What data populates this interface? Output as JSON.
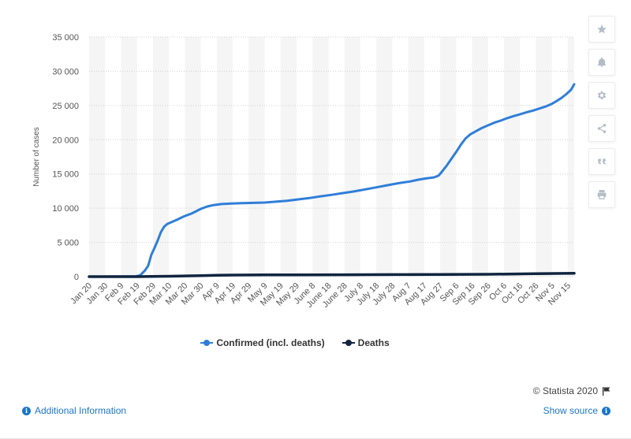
{
  "chart_data": {
    "type": "line",
    "ylabel": "Number of cases",
    "xlabel": "",
    "ylim": [
      0,
      35000
    ],
    "yticks": [
      0,
      5000,
      10000,
      15000,
      20000,
      25000,
      30000,
      35000
    ],
    "ytick_labels": [
      "0",
      "5 000",
      "10 000",
      "15 000",
      "20 000",
      "25 000",
      "30 000",
      "35 000"
    ],
    "x_labels": [
      "Jan 20",
      "Jan 30",
      "Feb 9",
      "Feb 19",
      "Feb 29",
      "Mar 10",
      "Mar 20",
      "Mar 30",
      "Apr 9",
      "Apr 19",
      "Apr 29",
      "May 9",
      "May 19",
      "May 29",
      "June 8",
      "June 18",
      "June 28",
      "July 8",
      "July 18",
      "July 28",
      "Aug 7",
      "Aug 17",
      "Aug 27",
      "Sep 6",
      "Sep 16",
      "Sep 26",
      "Oct 6",
      "Oct 16",
      "Oct 26",
      "Nov 5",
      "Nov 15"
    ],
    "x_range": [
      "Jan 20",
      "Nov 19"
    ],
    "grid": true,
    "legend_position": "bottom",
    "series": [
      {
        "name": "Confirmed (incl. deaths)",
        "color": "#2f7ed8",
        "points": [
          [
            "Jan 20",
            1
          ],
          [
            "Feb 1",
            15
          ],
          [
            "Feb 10",
            28
          ],
          [
            "Feb 18",
            31
          ],
          [
            "Feb 21",
            200
          ],
          [
            "Feb 24",
            900
          ],
          [
            "Feb 26",
            1600
          ],
          [
            "Feb 28",
            3200
          ],
          [
            "Mar 1",
            4200
          ],
          [
            "Mar 3",
            5300
          ],
          [
            "Mar 5",
            6500
          ],
          [
            "Mar 7",
            7300
          ],
          [
            "Mar 9",
            7700
          ],
          [
            "Mar 12",
            8000
          ],
          [
            "Mar 15",
            8300
          ],
          [
            "Mar 18",
            8650
          ],
          [
            "Mar 21",
            8950
          ],
          [
            "Mar 24",
            9200
          ],
          [
            "Mar 27",
            9550
          ],
          [
            "Mar 30",
            9900
          ],
          [
            "Apr 3",
            10250
          ],
          [
            "Apr 7",
            10450
          ],
          [
            "Apr 12",
            10600
          ],
          [
            "Apr 18",
            10680
          ],
          [
            "Apr 25",
            10740
          ],
          [
            "May 2",
            10780
          ],
          [
            "May 9",
            10820
          ],
          [
            "May 16",
            10950
          ],
          [
            "May 23",
            11080
          ],
          [
            "May 30",
            11280
          ],
          [
            "June 6",
            11480
          ],
          [
            "June 13",
            11730
          ],
          [
            "June 20",
            11950
          ],
          [
            "June 27",
            12200
          ],
          [
            "July 4",
            12450
          ],
          [
            "July 11",
            12750
          ],
          [
            "July 18",
            13050
          ],
          [
            "July 25",
            13350
          ],
          [
            "Aug 1",
            13650
          ],
          [
            "Aug 8",
            13900
          ],
          [
            "Aug 13",
            14150
          ],
          [
            "Aug 18",
            14350
          ],
          [
            "Aug 23",
            14500
          ],
          [
            "Aug 26",
            14750
          ],
          [
            "Aug 28",
            15300
          ],
          [
            "Aug 31",
            16200
          ],
          [
            "Sep 3",
            17200
          ],
          [
            "Sep 6",
            18200
          ],
          [
            "Sep 9",
            19300
          ],
          [
            "Sep 12",
            20200
          ],
          [
            "Sep 15",
            20800
          ],
          [
            "Sep 18",
            21200
          ],
          [
            "Sep 22",
            21700
          ],
          [
            "Sep 26",
            22100
          ],
          [
            "Sep 30",
            22500
          ],
          [
            "Oct 4",
            22800
          ],
          [
            "Oct 8",
            23150
          ],
          [
            "Oct 12",
            23450
          ],
          [
            "Oct 16",
            23700
          ],
          [
            "Oct 20",
            24000
          ],
          [
            "Oct 24",
            24250
          ],
          [
            "Oct 28",
            24550
          ],
          [
            "Nov 1",
            24850
          ],
          [
            "Nov 5",
            25250
          ],
          [
            "Nov 8",
            25650
          ],
          [
            "Nov 11",
            26100
          ],
          [
            "Nov 14",
            26650
          ],
          [
            "Nov 17",
            27300
          ],
          [
            "Nov 19",
            28100
          ]
        ]
      },
      {
        "name": "Deaths",
        "color": "#10253f",
        "points": [
          [
            "Jan 20",
            0
          ],
          [
            "Feb 19",
            0
          ],
          [
            "Feb 28",
            20
          ],
          [
            "Mar 10",
            60
          ],
          [
            "Mar 20",
            100
          ],
          [
            "Mar 30",
            150
          ],
          [
            "Apr 9",
            200
          ],
          [
            "Apr 19",
            230
          ],
          [
            "Apr 29",
            240
          ],
          [
            "May 9",
            250
          ],
          [
            "May 29",
            260
          ],
          [
            "June 28",
            280
          ],
          [
            "July 28",
            300
          ],
          [
            "Aug 27",
            310
          ],
          [
            "Sep 26",
            350
          ],
          [
            "Oct 26",
            430
          ],
          [
            "Nov 19",
            500
          ]
        ]
      }
    ]
  },
  "toolbar": {
    "buttons": [
      {
        "name": "bookmark-button",
        "icon": "star-icon"
      },
      {
        "name": "notification-button",
        "icon": "bell-icon"
      },
      {
        "name": "settings-button",
        "icon": "gear-icon"
      },
      {
        "name": "share-button",
        "icon": "share-icon"
      },
      {
        "name": "cite-button",
        "icon": "quote-icon"
      },
      {
        "name": "print-button",
        "icon": "printer-icon"
      }
    ]
  },
  "footer": {
    "copyright": "© Statista 2020",
    "additional_info": "Additional Information",
    "show_source": "Show source"
  }
}
